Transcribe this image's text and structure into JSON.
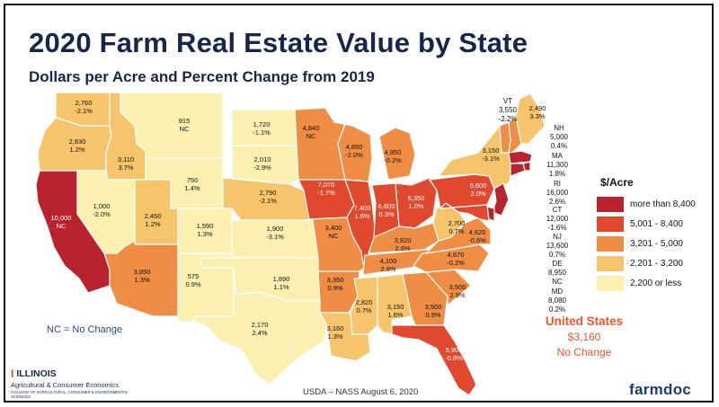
{
  "title": "2020 Farm Real Estate Value by State",
  "subtitle": "Dollars per Acre and Percent Change from 2019",
  "legend": {
    "title": "$/Acre",
    "items": [
      {
        "label": "more than 8,400",
        "color": "#b8232e"
      },
      {
        "label": "5,001 - 8,400",
        "color": "#e0492d"
      },
      {
        "label": "3,201 - 5,000",
        "color": "#ef8d45"
      },
      {
        "label": "2,201 - 3,200",
        "color": "#f6c46a"
      },
      {
        "label": "2,200 or less",
        "color": "#fbf0b0"
      }
    ]
  },
  "states": {
    "WA": {
      "value": "2,760",
      "change": "-2.1%",
      "color": "#f6c46a"
    },
    "OR": {
      "value": "2,830",
      "change": "1.2%",
      "color": "#f6c46a"
    },
    "CA": {
      "value": "10,000",
      "change": "NC",
      "color": "#b8232e"
    },
    "ID": {
      "value": "3,110",
      "change": "3.7%",
      "color": "#f6c46a"
    },
    "NV": {
      "value": "1,000",
      "change": "-2.0%",
      "color": "#fbf0b0"
    },
    "MT": {
      "value": "915",
      "change": "NC",
      "color": "#fbf0b0"
    },
    "WY": {
      "value": "750",
      "change": "1.4%",
      "color": "#fbf0b0"
    },
    "UT": {
      "value": "2,450",
      "change": "1.2%",
      "color": "#f6c46a"
    },
    "CO": {
      "value": "1,590",
      "change": "1.3%",
      "color": "#fbf0b0"
    },
    "AZ": {
      "value": "3,850",
      "change": "1.3%",
      "color": "#ef8d45"
    },
    "NM": {
      "value": "575",
      "change": "0.9%",
      "color": "#fbf0b0"
    },
    "ND": {
      "value": "1,720",
      "change": "-1.1%",
      "color": "#fbf0b0"
    },
    "SD": {
      "value": "2,010",
      "change": "-2.9%",
      "color": "#fbf0b0"
    },
    "NE": {
      "value": "2,790",
      "change": "-2.1%",
      "color": "#f6c46a"
    },
    "KS": {
      "value": "1,900",
      "change": "-3.1%",
      "color": "#fbf0b0"
    },
    "OK": {
      "value": "1,890",
      "change": "1.1%",
      "color": "#fbf0b0"
    },
    "TX": {
      "value": "2,170",
      "change": "2.4%",
      "color": "#fbf0b0"
    },
    "MN": {
      "value": "4,840",
      "change": "NC",
      "color": "#ef8d45"
    },
    "IA": {
      "value": "7,070",
      "change": "-1.7%",
      "color": "#e0492d"
    },
    "MO": {
      "value": "3,400",
      "change": "NC",
      "color": "#ef8d45"
    },
    "AR": {
      "value": "3,350",
      "change": "0.9%",
      "color": "#ef8d45"
    },
    "LA": {
      "value": "3,160",
      "change": "1.3%",
      "color": "#f6c46a"
    },
    "WI": {
      "value": "4,850",
      "change": "-2.0%",
      "color": "#ef8d45"
    },
    "IL": {
      "value": "7,400",
      "change": "1.6%",
      "color": "#e0492d"
    },
    "MI": {
      "value": "4,950",
      "change": "-0.2%",
      "color": "#ef8d45"
    },
    "IN": {
      "value": "6,600",
      "change": "0.3%",
      "color": "#e0492d"
    },
    "OH": {
      "value": "6,350",
      "change": "1.0%",
      "color": "#e0492d"
    },
    "KY": {
      "value": "3,920",
      "change": "2.6%",
      "color": "#ef8d45"
    },
    "TN": {
      "value": "4,100",
      "change": "2.8%",
      "color": "#ef8d45"
    },
    "MS": {
      "value": "2,820",
      "change": "0.7%",
      "color": "#f6c46a"
    },
    "AL": {
      "value": "3,150",
      "change": "1.6%",
      "color": "#f6c46a"
    },
    "GA": {
      "value": "3,500",
      "change": "0.9%",
      "color": "#ef8d45"
    },
    "FL": {
      "value": "5,900",
      "change": "-0.8%",
      "color": "#e0492d"
    },
    "SC": {
      "value": "3,500",
      "change": "2.9%",
      "color": "#ef8d45"
    },
    "NC": {
      "value": "4,670",
      "change": "-0.2%",
      "color": "#ef8d45"
    },
    "VA": {
      "value": "4,620",
      "change": "-0.6%",
      "color": "#ef8d45"
    },
    "WV": {
      "value": "2,700",
      "change": "0.7%",
      "color": "#f6c46a"
    },
    "PA": {
      "value": "6,600",
      "change": "2.0%",
      "color": "#e0492d"
    },
    "NY": {
      "value": "3,150",
      "change": "-3.1%",
      "color": "#f6c46a"
    },
    "VT": {
      "value": "3,550",
      "change": "-2.2%",
      "color": "#ef8d45"
    },
    "ME": {
      "value": "2,490",
      "change": "3.3%",
      "color": "#f6c46a"
    },
    "NH": {
      "value": "5,000",
      "change": "0.4%",
      "color": "#ef8d45"
    },
    "MA": {
      "value": "11,300",
      "change": "1.8%",
      "color": "#b8232e"
    },
    "RI": {
      "value": "16,000",
      "change": "2.6%",
      "color": "#b8232e"
    },
    "CT": {
      "value": "12,000",
      "change": "-1.6%",
      "color": "#b8232e"
    },
    "NJ": {
      "value": "13,600",
      "change": "0.7%",
      "color": "#b8232e"
    },
    "DE": {
      "value": "8,950",
      "change": "NC",
      "color": "#b8232e"
    },
    "MD": {
      "value": "8,080",
      "change": "0.2%",
      "color": "#e0492d"
    }
  },
  "northeast_labels": {
    "VT": "VT",
    "NH": "NH",
    "MA": "MA",
    "RI": "RI",
    "CT": "CT",
    "NJ": "NJ",
    "DE": "DE",
    "MD": "MD"
  },
  "us_summary": {
    "title": "United States",
    "value": "$3,160",
    "change": "No Change"
  },
  "nc_note": "NC = No Change",
  "source": "USDA – NASS August 6, 2020",
  "branding": {
    "illinois": "ILLINOIS",
    "department": "Agricultural & Consumer Economics",
    "college": "COLLEGE OF AGRICULTURAL, CONSUMER & ENVIRONMENTAL SCIENCES",
    "farmdoc": "farmdoc"
  }
}
